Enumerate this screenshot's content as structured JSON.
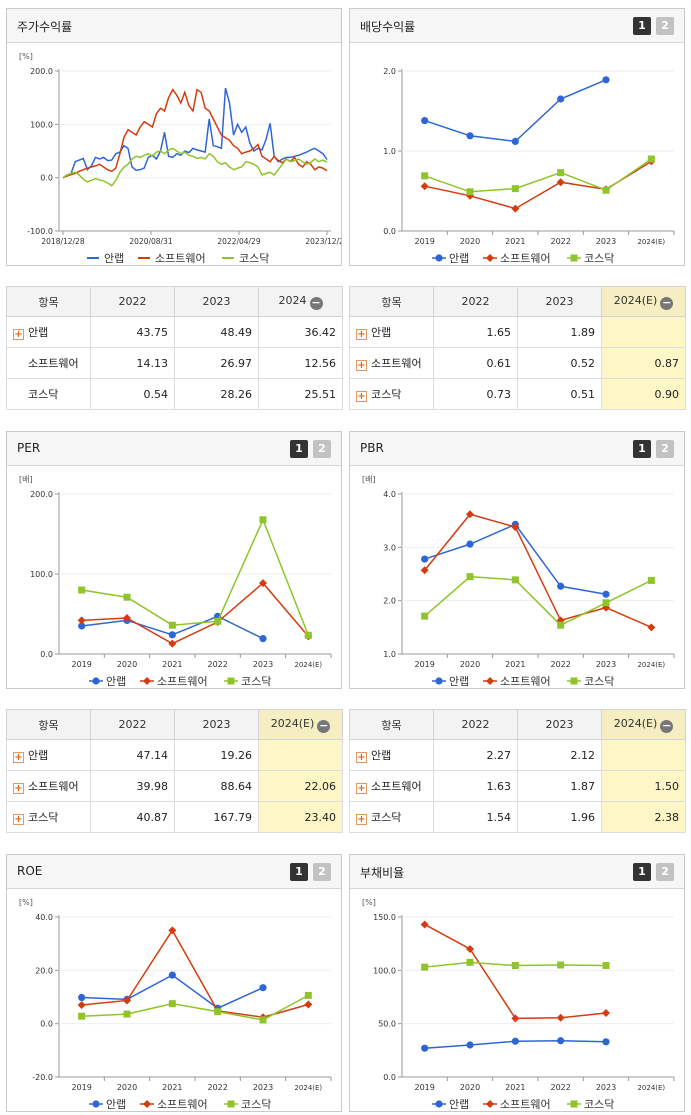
{
  "colors": {
    "series": [
      "#2f66d5",
      "#d43c0f",
      "#8fc42a"
    ]
  },
  "panels": {
    "stock": {
      "title": "주가수익률"
    },
    "div": {
      "title": "배당수익률",
      "pager": [
        "1",
        "2"
      ]
    },
    "per": {
      "title": "PER",
      "pager": [
        "1",
        "2"
      ]
    },
    "pbr": {
      "title": "PBR",
      "pager": [
        "1",
        "2"
      ]
    },
    "roe": {
      "title": "ROE",
      "pager": [
        "1",
        "2"
      ]
    },
    "debt": {
      "title": "부채비율",
      "pager": [
        "1",
        "2"
      ]
    }
  },
  "tables": {
    "stock": {
      "headers": [
        "항목",
        "2022",
        "2023",
        "2024"
      ],
      "rows": [
        {
          "name": "안랩",
          "values": [
            "43.75",
            "48.49",
            "36.42"
          ]
        },
        {
          "name": "소프트웨어",
          "values": [
            "14.13",
            "26.97",
            "12.56"
          ]
        },
        {
          "name": "코스닥",
          "values": [
            "0.54",
            "28.26",
            "25.51"
          ]
        }
      ]
    },
    "div": {
      "headers": [
        "항목",
        "2022",
        "2023",
        "2024(E)"
      ],
      "rows": [
        {
          "name": "안랩",
          "values": [
            "1.65",
            "1.89",
            ""
          ]
        },
        {
          "name": "소프트웨어",
          "values": [
            "0.61",
            "0.52",
            "0.87"
          ]
        },
        {
          "name": "코스닥",
          "values": [
            "0.73",
            "0.51",
            "0.90"
          ]
        }
      ]
    },
    "per": {
      "headers": [
        "항목",
        "2022",
        "2023",
        "2024(E)"
      ],
      "rows": [
        {
          "name": "안랩",
          "values": [
            "47.14",
            "19.26",
            ""
          ]
        },
        {
          "name": "소프트웨어",
          "values": [
            "39.98",
            "88.64",
            "22.06"
          ]
        },
        {
          "name": "코스닥",
          "values": [
            "40.87",
            "167.79",
            "23.40"
          ]
        }
      ]
    },
    "pbr": {
      "headers": [
        "항목",
        "2022",
        "2023",
        "2024(E)"
      ],
      "rows": [
        {
          "name": "안랩",
          "values": [
            "2.27",
            "2.12",
            ""
          ]
        },
        {
          "name": "소프트웨어",
          "values": [
            "1.63",
            "1.87",
            "1.50"
          ]
        },
        {
          "name": "코스닥",
          "values": [
            "1.54",
            "1.96",
            "2.38"
          ]
        }
      ]
    }
  },
  "chart_data": [
    {
      "id": "stock",
      "type": "line",
      "unit": "[%]",
      "ylim": [
        -100,
        200
      ],
      "yticks": [
        "200.0",
        "100.0",
        "0.0",
        "-100.0"
      ],
      "xlabels": [
        "2018/12/28",
        "2020/08/31",
        "2022/04/29",
        "2023/12/28"
      ],
      "legend": [
        "안랩",
        "소프트웨어",
        "코스닥"
      ],
      "series": [
        {
          "name": "안랩",
          "values": [
            0,
            5,
            8,
            30,
            33,
            36,
            15,
            22,
            38,
            35,
            38,
            32,
            33,
            45,
            48,
            60,
            55,
            20,
            14,
            15,
            18,
            38,
            42,
            35,
            50,
            85,
            40,
            38,
            45,
            42,
            50,
            47,
            55,
            52,
            50,
            48,
            110,
            60,
            58,
            55,
            168,
            140,
            80,
            100,
            85,
            95,
            65,
            50,
            55,
            52,
            72,
            102,
            40,
            30,
            35,
            38,
            38,
            40,
            42,
            45,
            48,
            52,
            55,
            50,
            45,
            34
          ]
        },
        {
          "name": "소프트웨어",
          "values": [
            0,
            3,
            6,
            8,
            12,
            15,
            18,
            20,
            22,
            25,
            20,
            15,
            12,
            18,
            45,
            75,
            90,
            85,
            80,
            95,
            105,
            100,
            95,
            120,
            130,
            125,
            150,
            165,
            155,
            140,
            160,
            135,
            125,
            165,
            160,
            130,
            125,
            110,
            95,
            80,
            75,
            70,
            60,
            55,
            45,
            48,
            50,
            55,
            62,
            40,
            35,
            30,
            40,
            32,
            28,
            35,
            30,
            38,
            25,
            20,
            30,
            25,
            15,
            20,
            18,
            13
          ]
        },
        {
          "name": "코스닥",
          "values": [
            0,
            5,
            8,
            10,
            5,
            -3,
            -8,
            -5,
            -2,
            -4,
            -6,
            -10,
            -15,
            -5,
            10,
            20,
            25,
            35,
            40,
            38,
            42,
            45,
            40,
            48,
            50,
            45,
            52,
            55,
            50,
            45,
            48,
            42,
            40,
            36,
            38,
            35,
            45,
            40,
            30,
            25,
            28,
            20,
            15,
            18,
            20,
            30,
            28,
            25,
            20,
            5,
            8,
            10,
            5,
            15,
            25,
            35,
            30,
            32,
            35,
            30,
            25,
            28,
            35,
            30,
            33,
            29
          ]
        }
      ]
    },
    {
      "id": "div",
      "type": "line",
      "ylim": [
        0,
        2
      ],
      "yticks": [
        "2.0",
        "1.0",
        "0.0"
      ],
      "categories": [
        "2019",
        "2020",
        "2021",
        "2022",
        "2023",
        "2024(E)"
      ],
      "legend": [
        "안랩",
        "소프트웨어",
        "코스닥"
      ],
      "series": [
        {
          "name": "안랩",
          "values": [
            1.38,
            1.19,
            1.12,
            1.65,
            1.89,
            null
          ]
        },
        {
          "name": "소프트웨어",
          "values": [
            0.56,
            0.44,
            0.28,
            0.61,
            0.52,
            0.87
          ]
        },
        {
          "name": "코스닥",
          "values": [
            0.69,
            0.49,
            0.53,
            0.73,
            0.51,
            0.9
          ]
        }
      ]
    },
    {
      "id": "per",
      "type": "line",
      "unit": "[배]",
      "ylim": [
        0,
        200
      ],
      "yticks": [
        "200.0",
        "100.0",
        "0.0"
      ],
      "categories": [
        "2019",
        "2020",
        "2021",
        "2022",
        "2023",
        "2024(E)"
      ],
      "legend": [
        "안랩",
        "소프트웨어",
        "코스닥"
      ],
      "series": [
        {
          "name": "안랩",
          "values": [
            35,
            42,
            24,
            47.14,
            19.26,
            null
          ]
        },
        {
          "name": "소프트웨어",
          "values": [
            42,
            45,
            13,
            39.98,
            88.64,
            22.06
          ]
        },
        {
          "name": "코스닥",
          "values": [
            80,
            71,
            36,
            40.87,
            167.79,
            23.4
          ]
        }
      ]
    },
    {
      "id": "pbr",
      "type": "line",
      "unit": "[배]",
      "ylim": [
        1,
        4
      ],
      "yticks": [
        "4.0",
        "3.0",
        "2.0",
        "1.0"
      ],
      "categories": [
        "2019",
        "2020",
        "2021",
        "2022",
        "2023",
        "2024(E)"
      ],
      "legend": [
        "안랩",
        "소프트웨어",
        "코스닥"
      ],
      "series": [
        {
          "name": "안랩",
          "values": [
            2.78,
            3.06,
            3.43,
            2.27,
            2.12,
            null
          ]
        },
        {
          "name": "소프트웨어",
          "values": [
            2.57,
            3.62,
            3.38,
            1.63,
            1.87,
            1.5
          ]
        },
        {
          "name": "코스닥",
          "values": [
            1.71,
            2.45,
            2.39,
            1.54,
            1.96,
            2.38
          ]
        }
      ]
    },
    {
      "id": "roe",
      "type": "line",
      "unit": "[%]",
      "ylim": [
        -20,
        40
      ],
      "yticks": [
        "40.0",
        "20.0",
        "0.0",
        "-20.0"
      ],
      "categories": [
        "2019",
        "2020",
        "2021",
        "2022",
        "2023",
        "2024(E)"
      ],
      "legend": [
        "안랩",
        "소프트웨어",
        "코스닥"
      ],
      "series": [
        {
          "name": "안랩",
          "values": [
            9.8,
            9.1,
            18.2,
            5.8,
            13.5,
            null
          ]
        },
        {
          "name": "소프트웨어",
          "values": [
            7.0,
            8.7,
            35.0,
            4.8,
            2.4,
            7.2
          ]
        },
        {
          "name": "코스닥",
          "values": [
            2.8,
            3.6,
            7.5,
            4.5,
            1.4,
            10.6
          ]
        }
      ]
    },
    {
      "id": "debt",
      "type": "line",
      "unit": "[%]",
      "ylim": [
        0,
        150
      ],
      "yticks": [
        "150.0",
        "100.0",
        "50.0",
        "0.0"
      ],
      "categories": [
        "2019",
        "2020",
        "2021",
        "2022",
        "2023",
        "2024(E)"
      ],
      "legend": [
        "안랩",
        "소프트웨어",
        "코스닥"
      ],
      "series": [
        {
          "name": "안랩",
          "values": [
            27,
            30,
            33.5,
            34,
            33,
            null
          ]
        },
        {
          "name": "소프트웨어",
          "values": [
            143,
            120,
            55,
            55.5,
            60,
            null
          ]
        },
        {
          "name": "코스닥",
          "values": [
            103,
            107.5,
            104.5,
            105,
            104.5,
            null
          ]
        }
      ]
    }
  ]
}
